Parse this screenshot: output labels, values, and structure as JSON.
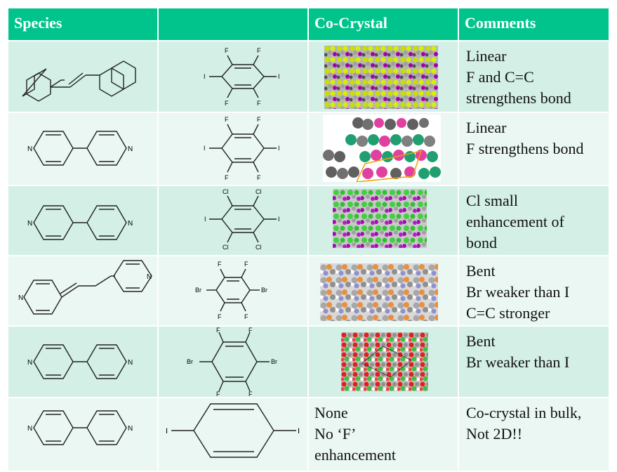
{
  "table": {
    "headers": [
      "Species",
      "",
      "Co-Crystal",
      "Comments"
    ],
    "rows": [
      {
        "species": "4,4'-bipyridylethylene",
        "partner_atoms": [
          "F",
          "F",
          "I",
          "I",
          "F",
          "F"
        ],
        "cocrystal": "image",
        "comments": [
          "Linear",
          "F and C=C",
          "strengthens bond"
        ]
      },
      {
        "species": "4,4'-bipyridine",
        "partner_atoms": [
          "F",
          "F",
          "I",
          "I",
          "F",
          "F"
        ],
        "cocrystal": "image",
        "comments": [
          "Linear",
          "F strengthens bond"
        ]
      },
      {
        "species": "4,4'-bipyridine",
        "partner_atoms": [
          "Cl",
          "Cl",
          "I",
          "I",
          "Cl",
          "Cl"
        ],
        "cocrystal": "image",
        "comments": [
          "Cl small",
          "enhancement of",
          "bond"
        ]
      },
      {
        "species": "4,4'-bipyridylethylene",
        "partner_atoms": [
          "F",
          "F",
          "Br",
          "Br",
          "F",
          "F"
        ],
        "cocrystal": "image",
        "comments": [
          "Bent",
          "Br weaker than I",
          "C=C stronger"
        ]
      },
      {
        "species": "4,4'-bipyridine",
        "partner_atoms": [
          "F",
          "F",
          "Br",
          "Br",
          "F",
          "F"
        ],
        "cocrystal": "image",
        "comments": [
          "Bent",
          "Br weaker than I"
        ]
      },
      {
        "species": "4,4'-bipyridine",
        "partner_atoms": [
          "I",
          "I"
        ],
        "cocrystal_text": [
          "None",
          "No ‘F’",
          "enhancement"
        ],
        "comments": [
          "Co-crystal in bulk,",
          "Not 2D!!"
        ]
      }
    ]
  },
  "atom_labels": {
    "N": "N",
    "F": "F",
    "I": "I",
    "Cl": "Cl",
    "Br": "Br"
  },
  "colors": {
    "header": "#00c48c",
    "row_odd": "#d3efe6",
    "row_even": "#eaf7f3"
  }
}
